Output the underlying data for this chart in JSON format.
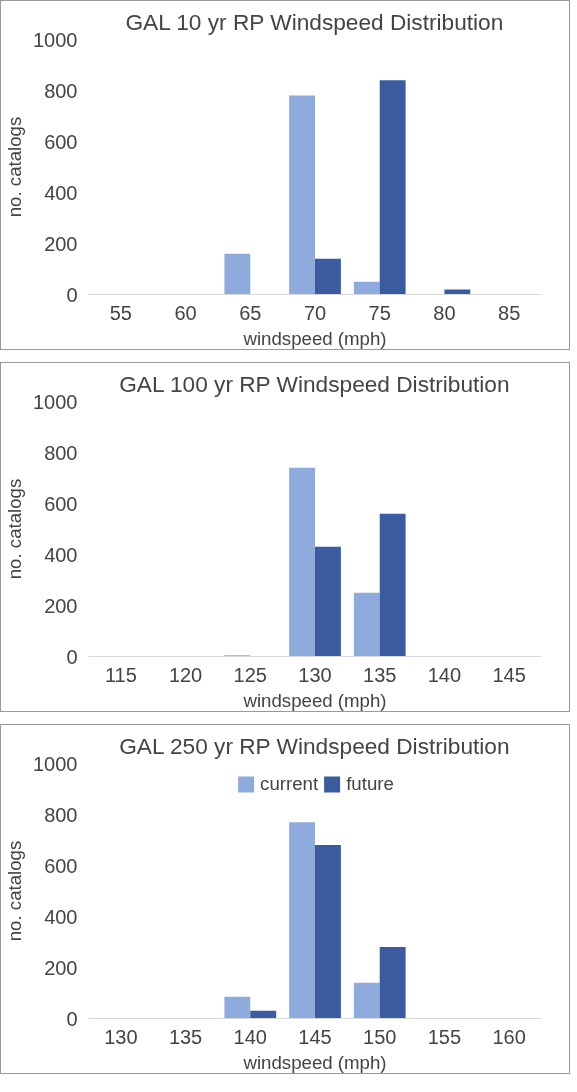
{
  "chart_data": [
    {
      "type": "bar",
      "title": "GAL 10 yr RP Windspeed Distribution",
      "xlabel": "windspeed (mph)",
      "ylabel": "no. catalogs",
      "categories": [
        "55",
        "60",
        "65",
        "70",
        "75",
        "80",
        "85"
      ],
      "ylim": [
        0,
        1000
      ],
      "yticks": [
        0,
        200,
        400,
        600,
        800,
        1000
      ],
      "grid": false,
      "legend": false,
      "series": [
        {
          "color": "#8faadc",
          "values": [
            0,
            0,
            160,
            780,
            50,
            0,
            0
          ]
        },
        {
          "color": "#3a5ba0",
          "values": [
            0,
            0,
            0,
            140,
            840,
            20,
            0
          ]
        }
      ]
    },
    {
      "type": "bar",
      "title": "GAL 100 yr RP Windspeed Distribution",
      "xlabel": "windspeed (mph)",
      "ylabel": "no. catalogs",
      "categories": [
        "115",
        "120",
        "125",
        "130",
        "135",
        "140",
        "145"
      ],
      "ylim": [
        0,
        1000
      ],
      "yticks": [
        0,
        200,
        400,
        600,
        800,
        1000
      ],
      "grid": false,
      "legend": false,
      "series": [
        {
          "color": "#8faadc",
          "values": [
            0,
            0,
            5,
            740,
            250,
            0,
            0
          ]
        },
        {
          "color": "#3a5ba0",
          "values": [
            0,
            0,
            0,
            430,
            560,
            0,
            0
          ]
        }
      ]
    },
    {
      "type": "bar",
      "title": "GAL 250 yr RP Windspeed Distribution",
      "xlabel": "windspeed (mph)",
      "ylabel": "no. catalogs",
      "categories": [
        "130",
        "135",
        "140",
        "145",
        "150",
        "155",
        "160"
      ],
      "ylim": [
        0,
        1000
      ],
      "yticks": [
        0,
        200,
        400,
        600,
        800,
        1000
      ],
      "grid": false,
      "legend": "top",
      "series": [
        {
          "name": "current",
          "color": "#8faadc",
          "values": [
            0,
            0,
            85,
            770,
            140,
            0,
            0
          ]
        },
        {
          "name": "future",
          "color": "#3a5ba0",
          "values": [
            0,
            0,
            30,
            680,
            280,
            0,
            0
          ]
        }
      ]
    }
  ]
}
